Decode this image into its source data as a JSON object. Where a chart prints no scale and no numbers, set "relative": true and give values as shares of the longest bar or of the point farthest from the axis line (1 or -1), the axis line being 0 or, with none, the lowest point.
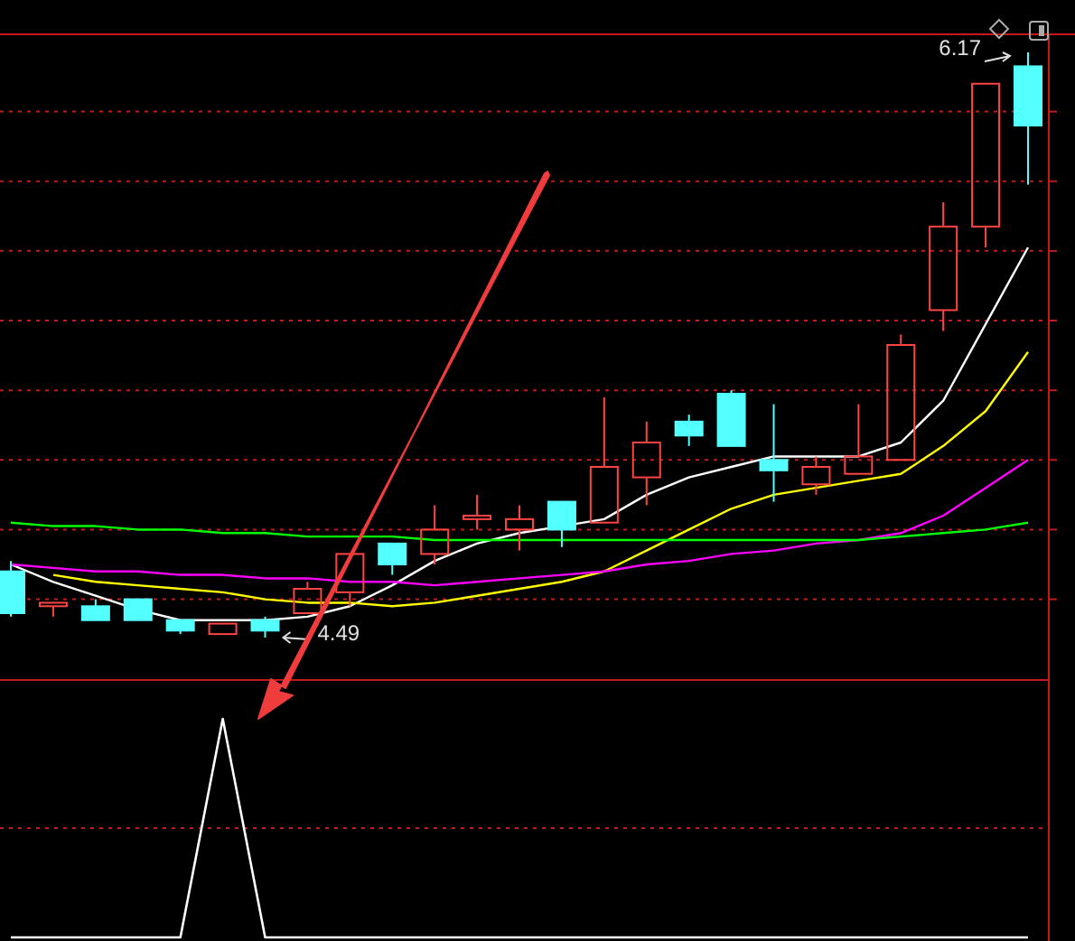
{
  "chart_data": [
    {
      "type": "candlestick",
      "categories": [
        null,
        null,
        null,
        null,
        null,
        null,
        null,
        null,
        null,
        null,
        null,
        null,
        null,
        null,
        null,
        null,
        null,
        null,
        null,
        null,
        null,
        null,
        null,
        null,
        null
      ],
      "ohlc": [
        [
          4.68,
          4.71,
          4.55,
          4.56
        ],
        [
          4.58,
          4.59,
          4.55,
          4.59
        ],
        [
          4.58,
          4.6,
          4.54,
          4.54
        ],
        [
          4.6,
          4.6,
          4.54,
          4.54
        ],
        [
          4.54,
          4.54,
          4.5,
          4.51
        ],
        [
          4.5,
          4.53,
          4.5,
          4.53
        ],
        [
          4.54,
          4.55,
          4.49,
          4.51
        ],
        [
          4.56,
          4.65,
          4.56,
          4.63
        ],
        [
          4.62,
          4.73,
          4.58,
          4.73
        ],
        [
          4.76,
          4.76,
          4.67,
          4.7
        ],
        [
          4.73,
          4.87,
          4.7,
          4.8
        ],
        [
          4.83,
          4.9,
          4.8,
          4.84
        ],
        [
          4.8,
          4.87,
          4.74,
          4.83
        ],
        [
          4.88,
          4.88,
          4.75,
          4.8
        ],
        [
          4.82,
          5.18,
          4.82,
          4.98
        ],
        [
          4.95,
          5.11,
          4.87,
          5.05
        ],
        [
          5.11,
          5.13,
          5.04,
          5.07
        ],
        [
          5.19,
          5.2,
          5.04,
          5.04
        ],
        [
          5.0,
          5.16,
          4.88,
          4.97
        ],
        [
          4.93,
          5.01,
          4.9,
          4.98
        ],
        [
          4.96,
          5.16,
          4.96,
          5.01
        ],
        [
          5.0,
          5.36,
          5.0,
          5.33
        ],
        [
          5.43,
          5.74,
          5.37,
          5.67
        ],
        [
          5.67,
          6.08,
          5.61,
          6.08
        ],
        [
          6.13,
          6.17,
          5.79,
          5.96
        ]
      ],
      "series": [
        {
          "type": "line",
          "color": "#ffffff",
          "values": [
            4.7,
            4.65,
            4.61,
            4.57,
            4.54,
            4.54,
            4.54,
            4.55,
            4.58,
            4.64,
            4.71,
            4.76,
            4.79,
            4.81,
            4.83,
            4.9,
            4.95,
            4.98,
            5.01,
            5.01,
            5.01,
            5.05,
            5.17,
            5.39,
            5.61
          ]
        },
        {
          "type": "line",
          "color": "#ffff00",
          "values": [
            null,
            4.67,
            4.65,
            4.64,
            4.63,
            4.62,
            4.6,
            4.59,
            4.59,
            4.58,
            4.59,
            4.61,
            4.63,
            4.65,
            4.68,
            4.74,
            4.8,
            4.86,
            4.9,
            4.92,
            4.94,
            4.96,
            5.04,
            5.14,
            5.31
          ]
        },
        {
          "type": "line",
          "color": "#ff00ff",
          "values": [
            4.7,
            4.69,
            4.68,
            4.68,
            4.67,
            4.67,
            4.66,
            4.66,
            4.65,
            4.65,
            4.64,
            4.65,
            4.66,
            4.67,
            4.68,
            4.7,
            4.71,
            4.73,
            4.74,
            4.76,
            4.77,
            4.79,
            4.84,
            4.92,
            5.0
          ]
        },
        {
          "type": "line",
          "color": "#00ff00",
          "values": [
            4.82,
            4.81,
            4.81,
            4.8,
            4.8,
            4.79,
            4.79,
            4.78,
            4.78,
            4.78,
            4.77,
            4.77,
            4.77,
            4.77,
            4.77,
            4.77,
            4.77,
            4.77,
            4.77,
            4.77,
            4.77,
            4.78,
            4.79,
            4.8,
            4.82
          ]
        }
      ],
      "annotations": [
        "6.17",
        "4.49"
      ],
      "yticks": [
        {
          "value": 4.6,
          "label": null
        },
        {
          "value": 4.8,
          "label": null
        },
        {
          "value": 5.0,
          "label": null
        },
        {
          "value": 5.2,
          "label": null
        },
        {
          "value": 5.4,
          "label": null
        },
        {
          "value": 5.6,
          "label": null
        },
        {
          "value": 5.8,
          "label": null
        },
        {
          "value": 6.0,
          "label": null
        }
      ],
      "grid": true
    },
    {
      "type": "line",
      "categories": [
        null,
        null,
        null,
        null,
        null,
        null,
        null,
        null,
        null,
        null,
        null,
        null,
        null,
        null,
        null,
        null,
        null,
        null,
        null,
        null,
        null,
        null,
        null,
        null,
        null
      ],
      "series": [
        {
          "color": "#ffffff",
          "values": [
            0,
            0,
            0,
            0,
            0,
            1,
            0,
            0,
            0,
            0,
            0,
            0,
            0,
            0,
            0,
            0,
            0,
            0,
            0,
            0,
            0,
            0,
            0,
            0,
            0
          ]
        }
      ],
      "ref_lines": [
        {
          "axis": "y",
          "value": 0.5,
          "color": "#c41a1a",
          "line_style": "dashed"
        }
      ],
      "relative": true
    }
  ]
}
